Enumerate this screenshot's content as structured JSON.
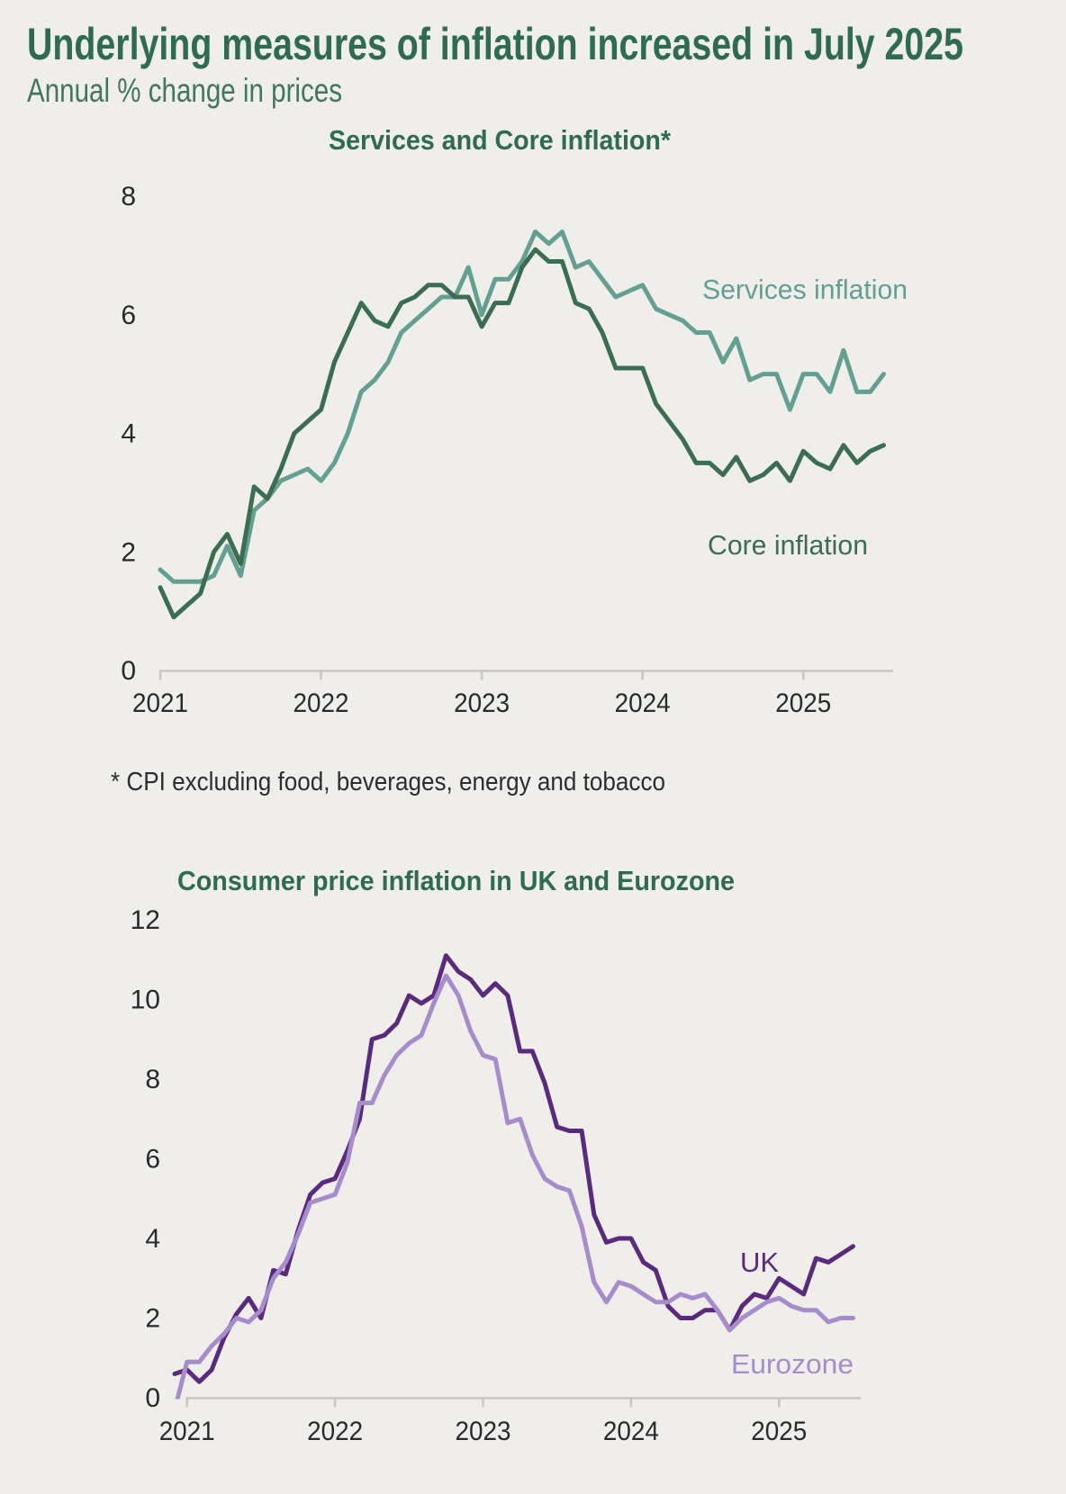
{
  "page": {
    "title": "Underlying measures of inflation increased in July 2025",
    "subtitle": "Annual % change in prices",
    "footnote": "* CPI excluding food, beverages, energy and tobacco",
    "background_color": "#efeeea",
    "title_color": "#2e6b4f",
    "subtitle_color": "#41775f",
    "footnote_color": "#2b2d33",
    "axis_color": "#c8c6c2",
    "tick_text_color": "#2a2a2e"
  },
  "chart_data": [
    {
      "type": "line",
      "title": "Services and Core inflation*",
      "x_unit": "month",
      "x_start": "2021-01",
      "x_end": "2025-07",
      "x_tick_labels": [
        "2021",
        "2022",
        "2023",
        "2024",
        "2025"
      ],
      "y_ticks": [
        0,
        2,
        4,
        6,
        8
      ],
      "ylim": [
        0,
        8
      ],
      "grid": false,
      "legend_position": "labels-on-chart",
      "series": [
        {
          "name": "Services inflation",
          "color": "#64a092",
          "values": [
            1.7,
            1.5,
            1.5,
            1.5,
            1.6,
            2.1,
            1.6,
            2.7,
            2.9,
            3.2,
            3.3,
            3.4,
            3.2,
            3.5,
            4.0,
            4.7,
            4.9,
            5.2,
            5.7,
            5.9,
            6.1,
            6.3,
            6.3,
            6.8,
            6.0,
            6.6,
            6.6,
            6.9,
            7.4,
            7.2,
            7.4,
            6.8,
            6.9,
            6.6,
            6.3,
            6.4,
            6.5,
            6.1,
            6.0,
            5.9,
            5.7,
            5.7,
            5.2,
            5.6,
            4.9,
            5.0,
            5.0,
            4.4,
            5.0,
            5.0,
            4.7,
            5.4,
            4.7,
            4.7,
            5.0
          ]
        },
        {
          "name": "Core inflation",
          "color": "#3b6d51",
          "values": [
            1.4,
            0.9,
            1.1,
            1.3,
            2.0,
            2.3,
            1.8,
            3.1,
            2.9,
            3.4,
            4.0,
            4.2,
            4.4,
            5.2,
            5.7,
            6.2,
            5.9,
            5.8,
            6.2,
            6.3,
            6.5,
            6.5,
            6.3,
            6.3,
            5.8,
            6.2,
            6.2,
            6.8,
            7.1,
            6.9,
            6.9,
            6.2,
            6.1,
            5.7,
            5.1,
            5.1,
            5.1,
            4.5,
            4.2,
            3.9,
            3.5,
            3.5,
            3.3,
            3.6,
            3.2,
            3.3,
            3.5,
            3.2,
            3.7,
            3.5,
            3.4,
            3.8,
            3.5,
            3.7,
            3.8
          ]
        }
      ]
    },
    {
      "type": "line",
      "title": "Consumer price inflation in UK and Eurozone",
      "x_unit": "month",
      "x_start": "2020-12",
      "x_end": "2025-07",
      "x_tick_labels": [
        "2021",
        "2022",
        "2023",
        "2024",
        "2025"
      ],
      "y_ticks": [
        0,
        2,
        4,
        6,
        8,
        10,
        12
      ],
      "ylim": [
        0,
        12
      ],
      "grid": false,
      "legend_position": "labels-on-chart",
      "series": [
        {
          "name": "UK",
          "color": "#5a2b7c",
          "values": [
            0.6,
            0.7,
            0.4,
            0.7,
            1.5,
            2.1,
            2.5,
            2.0,
            3.2,
            3.1,
            4.2,
            5.1,
            5.4,
            5.5,
            6.2,
            7.0,
            9.0,
            9.1,
            9.4,
            10.1,
            9.9,
            10.1,
            11.1,
            10.7,
            10.5,
            10.1,
            10.4,
            10.1,
            8.7,
            8.7,
            7.9,
            6.8,
            6.7,
            6.7,
            4.6,
            3.9,
            4.0,
            4.0,
            3.4,
            3.2,
            2.3,
            2.0,
            2.0,
            2.2,
            2.2,
            1.7,
            2.3,
            2.6,
            2.5,
            3.0,
            2.8,
            2.6,
            3.5,
            3.4,
            3.6,
            3.8
          ]
        },
        {
          "name": "Eurozone",
          "color": "#a78ccc",
          "values": [
            -0.3,
            0.9,
            0.9,
            1.3,
            1.6,
            2.0,
            1.9,
            2.2,
            3.0,
            3.4,
            4.1,
            4.9,
            5.0,
            5.1,
            5.9,
            7.4,
            7.4,
            8.1,
            8.6,
            8.9,
            9.1,
            9.9,
            10.6,
            10.1,
            9.2,
            8.6,
            8.5,
            6.9,
            7.0,
            6.1,
            5.5,
            5.3,
            5.2,
            4.3,
            2.9,
            2.4,
            2.9,
            2.8,
            2.6,
            2.4,
            2.4,
            2.6,
            2.5,
            2.6,
            2.2,
            1.7,
            2.0,
            2.2,
            2.4,
            2.5,
            2.3,
            2.2,
            2.2,
            1.9,
            2.0,
            2.0
          ]
        }
      ]
    }
  ]
}
